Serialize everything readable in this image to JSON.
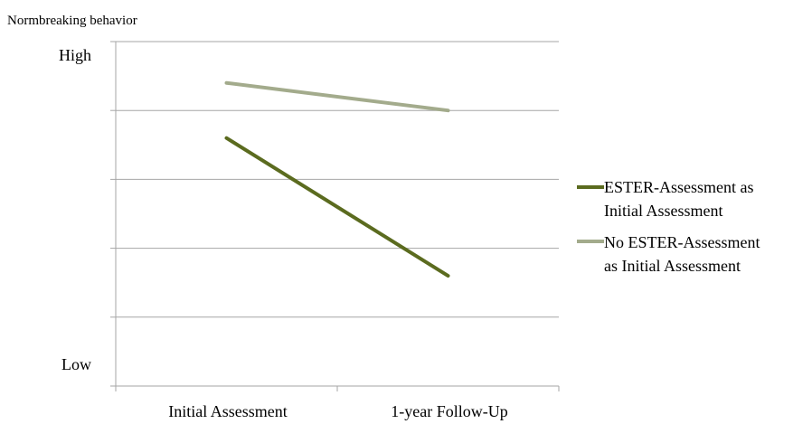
{
  "chart_data": {
    "type": "line",
    "ylabel": "Normbreaking behavior",
    "xlabel": "",
    "categories": [
      "Initial Assessment",
      "1-year Follow-Up"
    ],
    "ylim": [
      0,
      5
    ],
    "y_tick_labels": {
      "top": "High",
      "bottom": "Low"
    },
    "grid": true,
    "legend_position": "right",
    "series": [
      {
        "name": "ESTER-Assessment as Initial Assessment",
        "legend_lines": [
          "ESTER-Assessment as",
          "Initial Assessment"
        ],
        "values": [
          3.6,
          1.6
        ],
        "color": "#5b6b1f"
      },
      {
        "name": "No ESTER-Assessment as Initial Assessment",
        "legend_lines": [
          "No ESTER-Assessment",
          "as Initial Assessment"
        ],
        "values": [
          4.4,
          4.0
        ],
        "color": "#a3ab8c"
      }
    ]
  }
}
